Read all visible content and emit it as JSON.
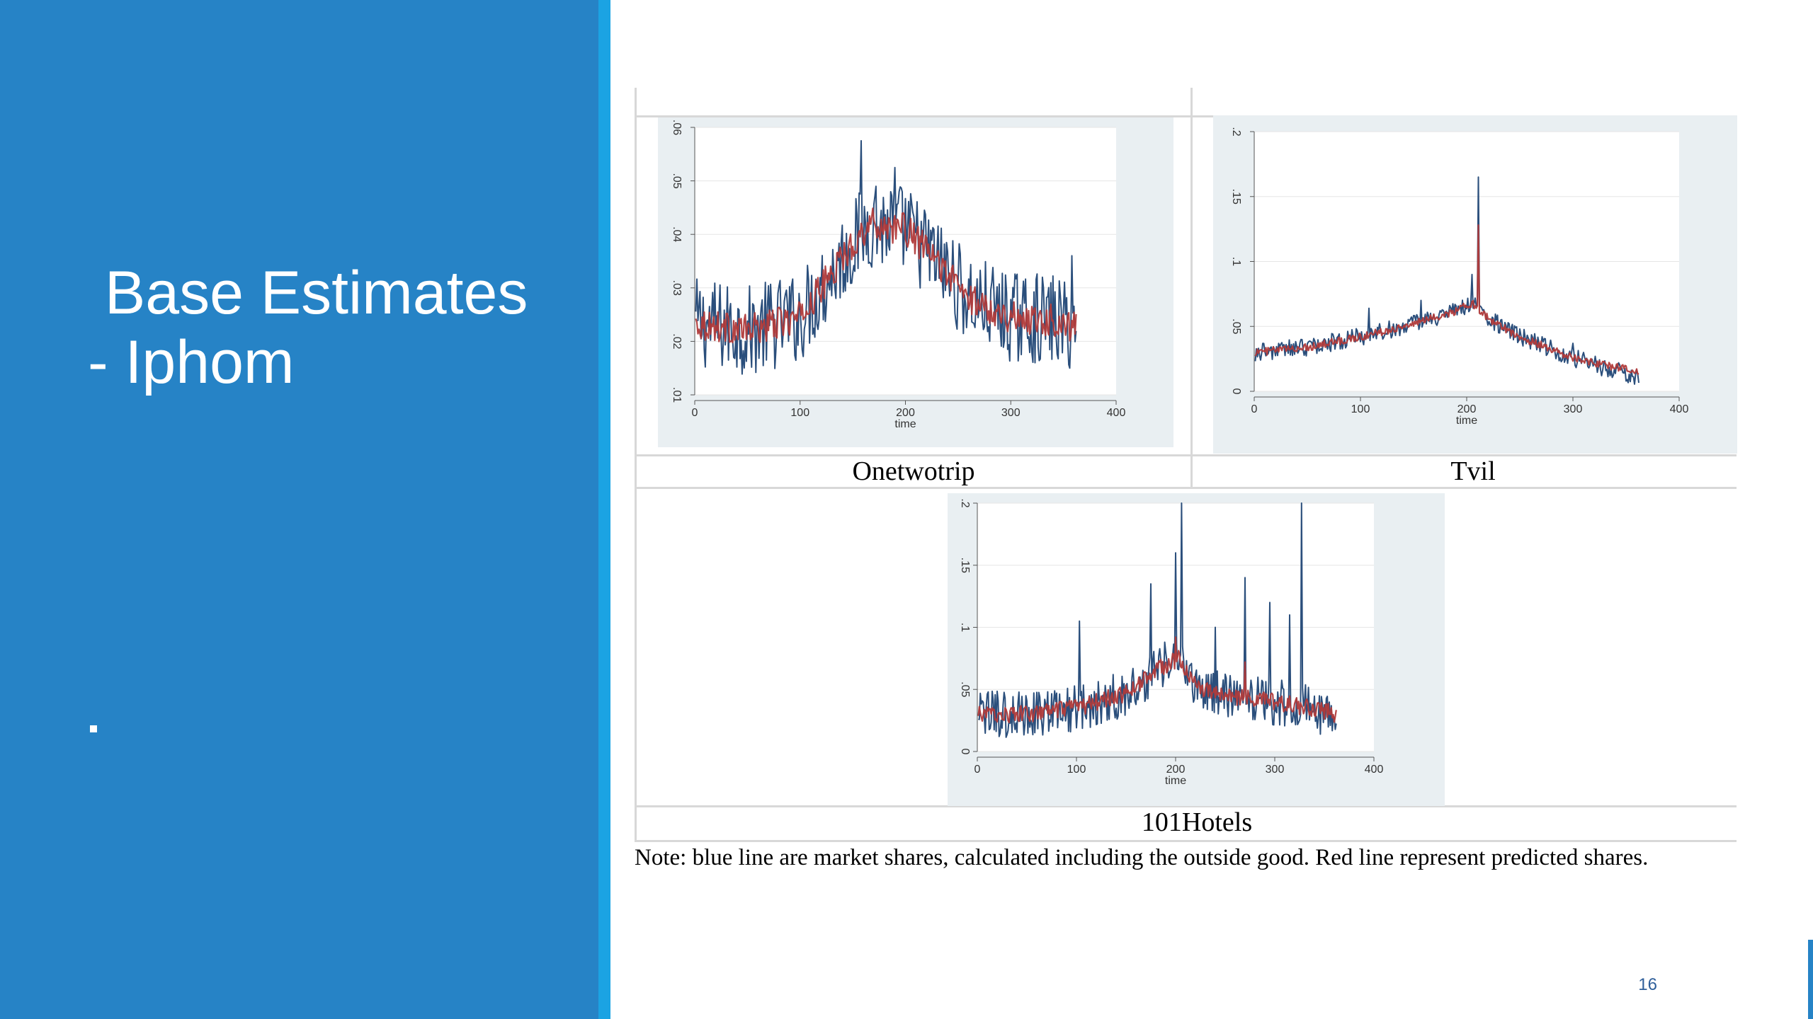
{
  "slide": {
    "title_line1": " Base Estimates",
    "title_line2": "- Iphom",
    "bullet": ".",
    "note": "Note: blue line are market shares, calculated including the outside good. Red line represent predicted shares.",
    "page_number": "16"
  },
  "colors": {
    "panel_bg": "#2683c6",
    "panel_edge": "#1ba3e3",
    "observed": "#2b4f7c",
    "predicted": "#b03a3a"
  },
  "chart_data": [
    {
      "type": "line",
      "title": "Onetwotrip",
      "xlabel": "time",
      "ylabel": "",
      "xlim": [
        0,
        400
      ],
      "ylim": [
        0.01,
        0.06
      ],
      "x_ticks": [
        "0",
        "100",
        "200",
        "300",
        "400"
      ],
      "y_ticks": [
        ".01",
        ".02",
        ".03",
        ".04",
        ".05",
        ".06"
      ],
      "x_range": [
        1,
        362
      ],
      "grid": true,
      "series": [
        {
          "color": "#2b4f7c",
          "points": [
            [
              0,
              0.0235
            ],
            [
              50,
              0.022
            ],
            [
              100,
              0.0245
            ],
            [
              140,
              0.0355
            ],
            [
              165,
              0.042
            ],
            [
              200,
              0.041
            ],
            [
              230,
              0.035
            ],
            [
              260,
              0.028
            ],
            [
              300,
              0.0245
            ],
            [
              340,
              0.024
            ],
            [
              362,
              0.0225
            ]
          ],
          "spikes": [
            [
              158,
              0.0575
            ],
            [
              172,
              0.049
            ],
            [
              190,
              0.0525
            ],
            [
              264,
              0.0235
            ],
            [
              358,
              0.036
            ],
            [
              120,
              0.0305
            ],
            [
              85,
              0.0275
            ]
          ],
          "amplitude": 0.0085
        },
        {
          "color": "#b03a3a",
          "points": [
            [
              0,
              0.0235
            ],
            [
              50,
              0.022
            ],
            [
              100,
              0.0245
            ],
            [
              140,
              0.0355
            ],
            [
              165,
              0.042
            ],
            [
              200,
              0.041
            ],
            [
              230,
              0.035
            ],
            [
              260,
              0.028
            ],
            [
              300,
              0.0245
            ],
            [
              340,
              0.024
            ],
            [
              362,
              0.0225
            ]
          ],
          "spikes": [
            [
              190,
              0.0435
            ]
          ],
          "amplitude": 0.003
        }
      ]
    },
    {
      "type": "line",
      "title": "Tvil",
      "xlabel": "time",
      "ylabel": "",
      "xlim": [
        0,
        400
      ],
      "ylim": [
        0,
        0.2
      ],
      "x_ticks": [
        "0",
        "100",
        "200",
        "300",
        "400"
      ],
      "y_ticks": [
        "0",
        ".05",
        ".1",
        ".15",
        ".2"
      ],
      "x_range": [
        1,
        362
      ],
      "grid": true,
      "series": [
        {
          "color": "#2b4f7c",
          "points": [
            [
              0,
              0.03
            ],
            [
              50,
              0.034
            ],
            [
              100,
              0.042
            ],
            [
              150,
              0.052
            ],
            [
              190,
              0.062
            ],
            [
              205,
              0.068
            ],
            [
              222,
              0.055
            ],
            [
              250,
              0.042
            ],
            [
              300,
              0.026
            ],
            [
              330,
              0.018
            ],
            [
              362,
              0.011
            ]
          ],
          "spikes": [
            [
              211,
              0.165
            ],
            [
              108,
              0.064
            ],
            [
              157,
              0.07
            ],
            [
              205,
              0.09
            ],
            [
              300,
              0.037
            ]
          ],
          "amplitude": 0.007
        },
        {
          "color": "#b03a3a",
          "points": [
            [
              0,
              0.03
            ],
            [
              50,
              0.034
            ],
            [
              100,
              0.042
            ],
            [
              150,
              0.052
            ],
            [
              190,
              0.062
            ],
            [
              205,
              0.068
            ],
            [
              222,
              0.055
            ],
            [
              250,
              0.042
            ],
            [
              300,
              0.026
            ],
            [
              330,
              0.02
            ],
            [
              362,
              0.016
            ]
          ],
          "spikes": [
            [
              211,
              0.128
            ]
          ],
          "amplitude": 0.003
        }
      ]
    },
    {
      "type": "line",
      "title": "101Hotels",
      "xlabel": "time",
      "ylabel": "",
      "xlim": [
        0,
        400
      ],
      "ylim": [
        0,
        0.2
      ],
      "x_ticks": [
        "0",
        "100",
        "200",
        "300",
        "400"
      ],
      "y_ticks": [
        "0",
        ".05",
        ".1",
        ".15",
        ".2"
      ],
      "x_range": [
        1,
        362
      ],
      "grid": true,
      "series": [
        {
          "color": "#2b4f7c",
          "points": [
            [
              0,
              0.03
            ],
            [
              50,
              0.03
            ],
            [
              100,
              0.035
            ],
            [
              150,
              0.047
            ],
            [
              185,
              0.068
            ],
            [
              205,
              0.075
            ],
            [
              220,
              0.052
            ],
            [
              250,
              0.045
            ],
            [
              300,
              0.04
            ],
            [
              330,
              0.036
            ],
            [
              362,
              0.028
            ]
          ],
          "spikes": [
            [
              206,
              0.205
            ],
            [
              327,
              0.215
            ],
            [
              103,
              0.105
            ],
            [
              175,
              0.135
            ],
            [
              200,
              0.16
            ],
            [
              270,
              0.14
            ],
            [
              240,
              0.1
            ],
            [
              295,
              0.12
            ],
            [
              315,
              0.11
            ]
          ],
          "amplitude": 0.019
        },
        {
          "color": "#b03a3a",
          "points": [
            [
              0,
              0.03
            ],
            [
              50,
              0.03
            ],
            [
              100,
              0.035
            ],
            [
              150,
              0.047
            ],
            [
              185,
              0.068
            ],
            [
              205,
              0.075
            ],
            [
              220,
              0.052
            ],
            [
              250,
              0.045
            ],
            [
              300,
              0.04
            ],
            [
              330,
              0.036
            ],
            [
              362,
              0.03
            ]
          ],
          "spikes": [
            [
              200,
              0.092
            ],
            [
              270,
              0.072
            ]
          ],
          "amplitude": 0.007
        }
      ]
    }
  ]
}
